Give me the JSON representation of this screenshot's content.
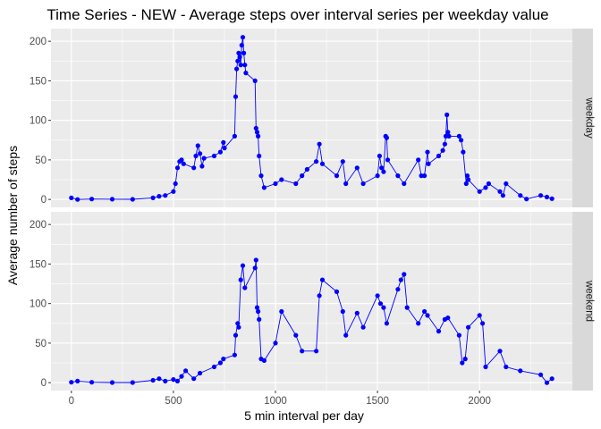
{
  "chart_data": {
    "type": "line",
    "title": "Time Series - NEW - Average steps over interval series per weekday value",
    "xlabel": "5 min interval per day",
    "ylabel": "Average number of steps",
    "xlim": [
      -100,
      2455
    ],
    "ylim": [
      -10,
      216
    ],
    "x_ticks": [
      0,
      500,
      1000,
      1500,
      2000
    ],
    "y_ticks": [
      0,
      50,
      100,
      150,
      200
    ],
    "grid": true,
    "facets": [
      "weekday",
      "weekend"
    ],
    "colors": {
      "series": "#0000ff",
      "panel_bg": "#ebebeb",
      "strip_bg": "#d9d9d9",
      "grid": "#ffffff"
    },
    "series": [
      {
        "name": "weekday",
        "x": [
          0,
          30,
          100,
          200,
          300,
          400,
          430,
          460,
          500,
          510,
          520,
          530,
          540,
          550,
          600,
          610,
          620,
          630,
          640,
          650,
          700,
          730,
          745,
          750,
          800,
          805,
          810,
          815,
          820,
          825,
          830,
          835,
          840,
          845,
          850,
          855,
          900,
          905,
          910,
          915,
          920,
          930,
          945,
          1000,
          1030,
          1100,
          1130,
          1155,
          1200,
          1215,
          1230,
          1300,
          1330,
          1345,
          1400,
          1430,
          1500,
          1510,
          1520,
          1530,
          1540,
          1545,
          1550,
          1600,
          1630,
          1700,
          1715,
          1730,
          1745,
          1750,
          1800,
          1820,
          1830,
          1835,
          1840,
          1845,
          1850,
          1900,
          1910,
          1920,
          1935,
          1940,
          1945,
          2000,
          2030,
          2045,
          2100,
          2115,
          2130,
          2200,
          2230,
          2300,
          2330,
          2355
        ],
        "y": [
          2,
          0,
          0.5,
          0.3,
          0.2,
          2,
          4,
          5,
          10,
          20,
          40,
          48,
          50,
          45,
          40,
          55,
          68,
          58,
          42,
          52,
          55,
          60,
          72,
          65,
          80,
          130,
          165,
          175,
          185,
          180,
          170,
          195,
          205,
          185,
          170,
          160,
          150,
          90,
          85,
          80,
          55,
          30,
          15,
          20,
          25,
          20,
          30,
          38,
          48,
          70,
          45,
          30,
          48,
          20,
          40,
          20,
          30,
          55,
          40,
          35,
          80,
          78,
          50,
          30,
          20,
          50,
          30,
          30,
          60,
          45,
          55,
          62,
          70,
          80,
          107,
          85,
          80,
          80,
          75,
          60,
          20,
          30,
          25,
          10,
          15,
          20,
          10,
          5,
          20,
          5,
          0.5,
          5,
          3,
          1
        ]
      },
      {
        "name": "weekend",
        "x": [
          0,
          30,
          100,
          200,
          300,
          400,
          430,
          460,
          500,
          520,
          540,
          560,
          600,
          630,
          700,
          730,
          745,
          800,
          805,
          815,
          820,
          830,
          840,
          850,
          900,
          905,
          910,
          915,
          920,
          930,
          945,
          1000,
          1030,
          1100,
          1130,
          1200,
          1215,
          1230,
          1300,
          1330,
          1345,
          1400,
          1430,
          1500,
          1515,
          1530,
          1545,
          1600,
          1615,
          1630,
          1645,
          1700,
          1730,
          1745,
          1800,
          1830,
          1845,
          1900,
          1915,
          1930,
          1945,
          2000,
          2015,
          2030,
          2100,
          2130,
          2200,
          2300,
          2330,
          2355
        ],
        "y": [
          0.5,
          2,
          0.5,
          0.2,
          0.2,
          3,
          5,
          2,
          4,
          2,
          8,
          15,
          5,
          12,
          20,
          25,
          30,
          35,
          60,
          75,
          70,
          130,
          148,
          120,
          145,
          155,
          95,
          90,
          80,
          30,
          28,
          50,
          90,
          60,
          40,
          40,
          110,
          130,
          115,
          90,
          60,
          88,
          70,
          110,
          100,
          95,
          75,
          118,
          130,
          137,
          95,
          75,
          90,
          85,
          65,
          80,
          82,
          60,
          25,
          30,
          70,
          85,
          75,
          20,
          40,
          20,
          15,
          10,
          0,
          5
        ]
      }
    ]
  }
}
